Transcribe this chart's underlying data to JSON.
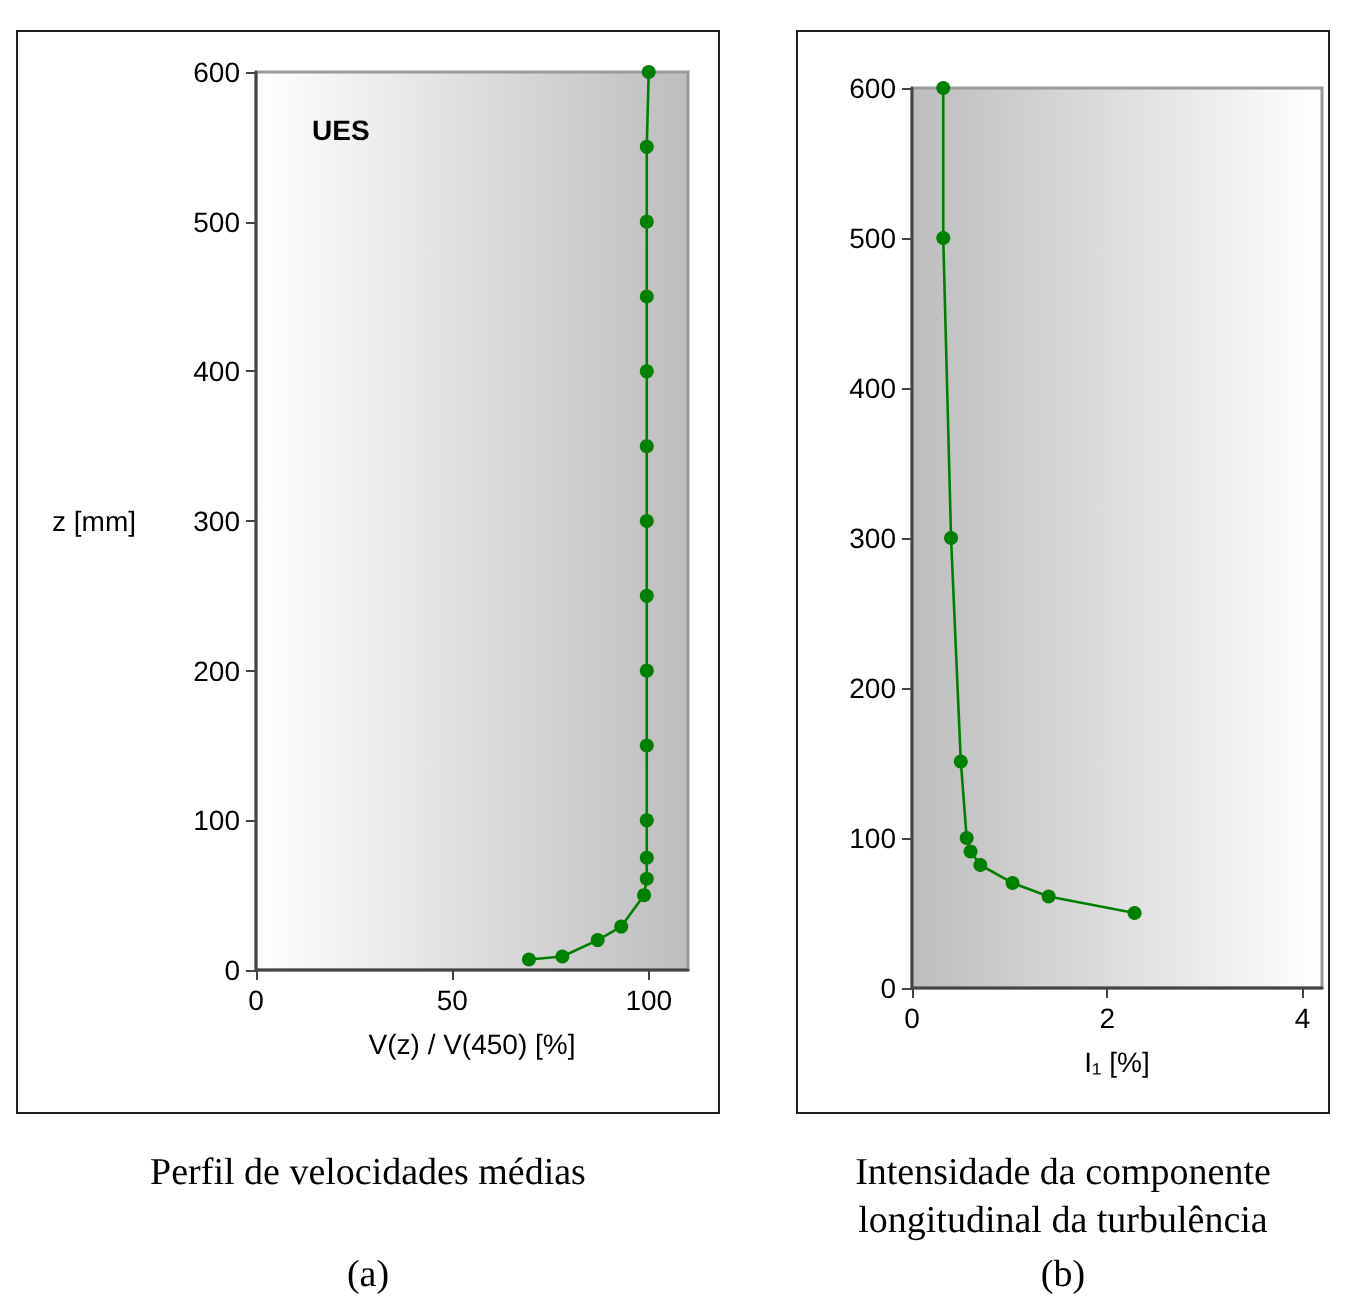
{
  "chart_data": [
    {
      "type": "line",
      "title": "Perfil de velocidades médias",
      "subtitle": "(a)",
      "xlabel": "V(z) / V(450) [%]",
      "ylabel": "z [mm]",
      "annotations": [
        "UES"
      ],
      "marker": "circle",
      "grid": false,
      "series": [
        {
          "color": "#008000",
          "x": [
            69.5,
            78,
            87,
            93,
            98.8,
            99.5,
            99.5,
            99.5,
            99.5,
            99.5,
            99.5,
            99.5,
            99.5,
            99.5,
            99.5,
            99.5,
            99.5,
            100
          ],
          "values": [
            7,
            9,
            20,
            29,
            50,
            61,
            75,
            100,
            150,
            200,
            250,
            300,
            350,
            400,
            450,
            500,
            550,
            600
          ]
        }
      ],
      "xlim": [
        0,
        110
      ],
      "xticks": [
        0,
        50,
        100
      ],
      "ylim": [
        0,
        600
      ],
      "yticks": [
        0,
        100,
        200,
        300,
        400,
        500,
        600
      ]
    },
    {
      "type": "line",
      "title": "Intensidade da componente longitudinal da turbulência",
      "subtitle": "(b)",
      "xlabel": "I₁ [%]",
      "marker": "circle",
      "grid": false,
      "series": [
        {
          "color": "#008000",
          "x": [
            0.32,
            0.32,
            0.4,
            0.5,
            0.56,
            0.6,
            0.7,
            1.03,
            1.4,
            2.28
          ],
          "values": [
            600,
            500,
            300,
            151,
            100,
            91,
            82,
            70,
            61,
            50
          ]
        }
      ],
      "xlim": [
        0,
        4.2
      ],
      "xticks": [
        0,
        2,
        4
      ],
      "ylim": [
        0,
        600
      ],
      "yticks": [
        0,
        100,
        200,
        300,
        400,
        500,
        600
      ]
    }
  ]
}
